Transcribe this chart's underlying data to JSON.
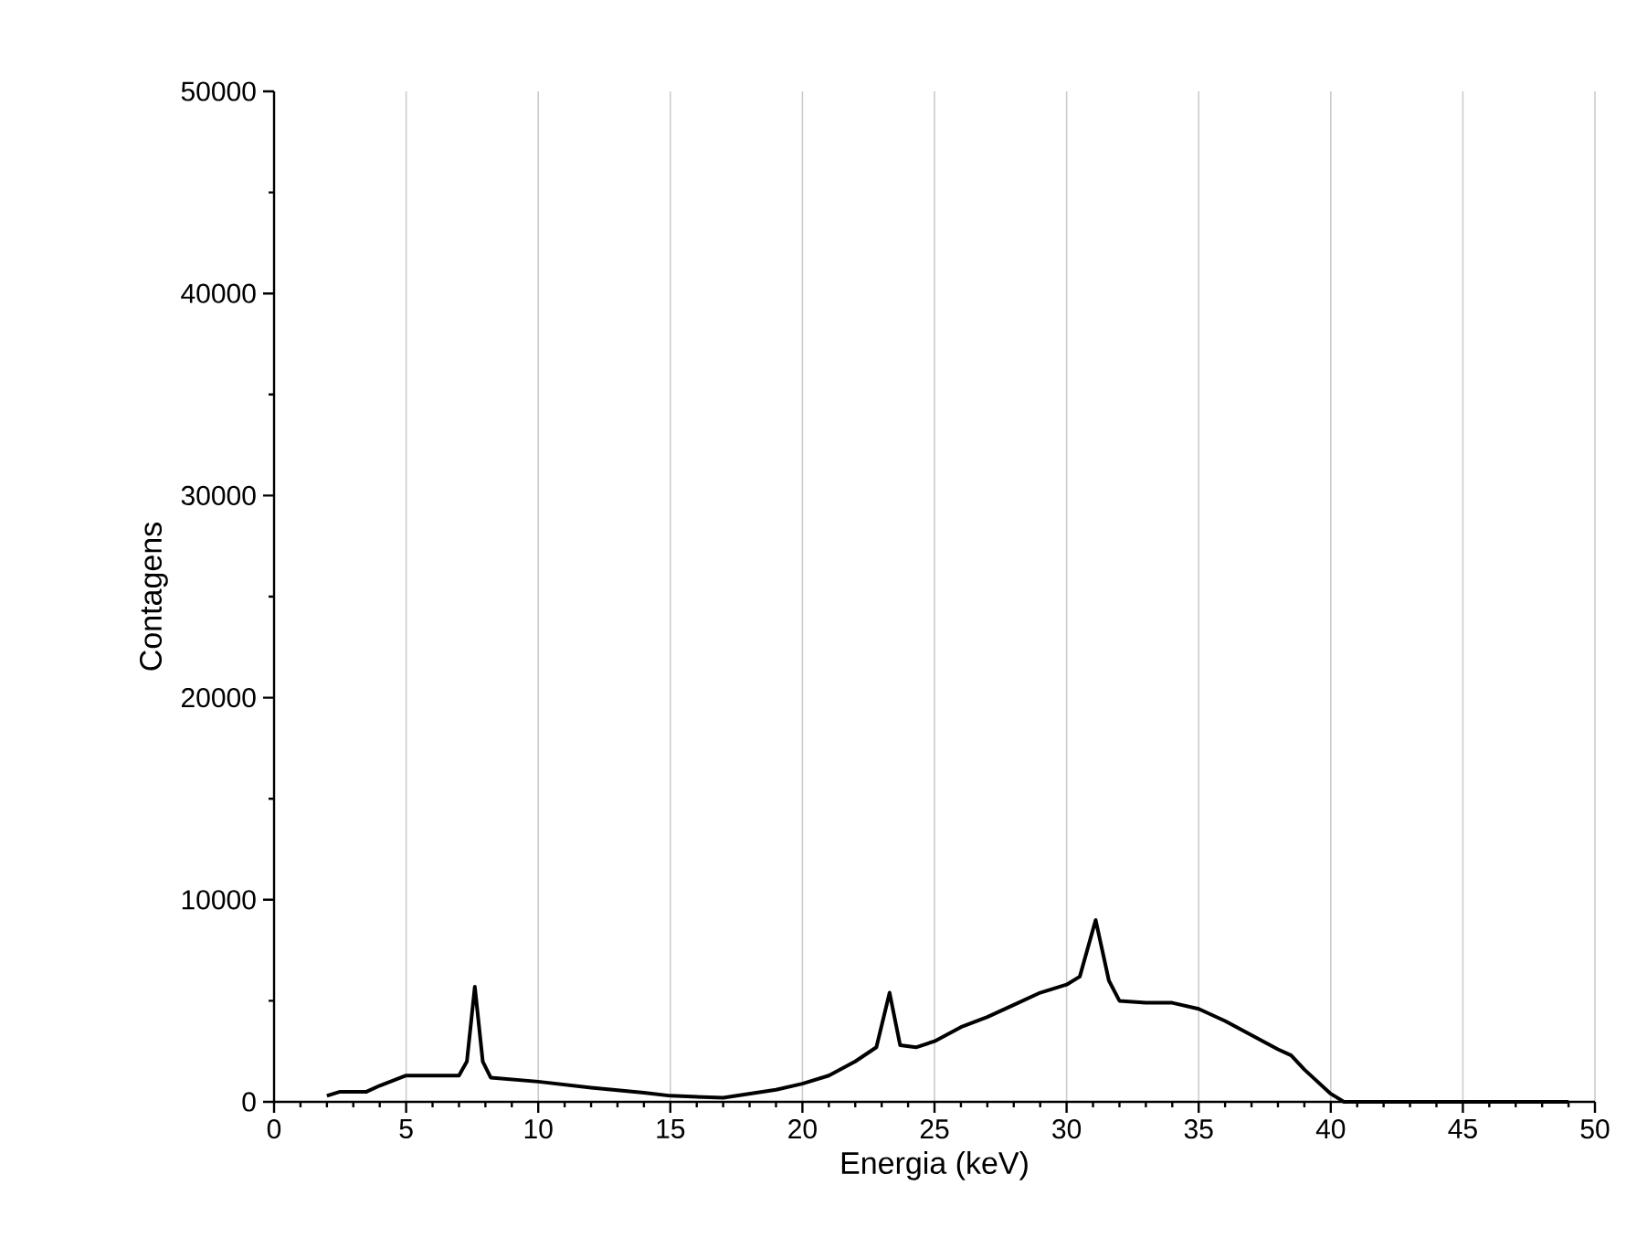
{
  "chart_data": {
    "type": "line",
    "xlabel": "Energia (keV)",
    "ylabel": "Contagens",
    "xlim": [
      0,
      50
    ],
    "ylim": [
      0,
      50000
    ],
    "xticks": [
      0,
      5,
      10,
      15,
      20,
      25,
      30,
      35,
      40,
      45,
      50
    ],
    "yticks": [
      0,
      10000,
      20000,
      30000,
      40000,
      50000
    ],
    "grid": "x",
    "marker": "none",
    "line_style": "solid",
    "series": [
      {
        "color": "#000000",
        "x": [
          2.0,
          2.5,
          3.5,
          4.0,
          5.0,
          6.0,
          7.0,
          7.3,
          7.6,
          7.9,
          8.2,
          10,
          12,
          14,
          15,
          17,
          19,
          20,
          21,
          22,
          22.8,
          23.3,
          23.7,
          24.3,
          25,
          26,
          27,
          28,
          29,
          30,
          30.5,
          31.1,
          31.6,
          32,
          33,
          34,
          35,
          36,
          37,
          38,
          38.5,
          39,
          40,
          40.5,
          41,
          43,
          45,
          47,
          49
        ],
        "values": [
          300,
          500,
          500,
          800,
          1300,
          1300,
          1300,
          2000,
          5700,
          2000,
          1200,
          1000,
          700,
          450,
          300,
          200,
          600,
          900,
          1300,
          2000,
          2700,
          5400,
          2800,
          2700,
          3000,
          3700,
          4200,
          4800,
          5400,
          5800,
          6200,
          9000,
          6000,
          5000,
          4900,
          4900,
          4600,
          4000,
          3300,
          2600,
          2300,
          1600,
          400,
          0,
          0,
          0,
          0,
          0,
          0
        ]
      }
    ]
  }
}
